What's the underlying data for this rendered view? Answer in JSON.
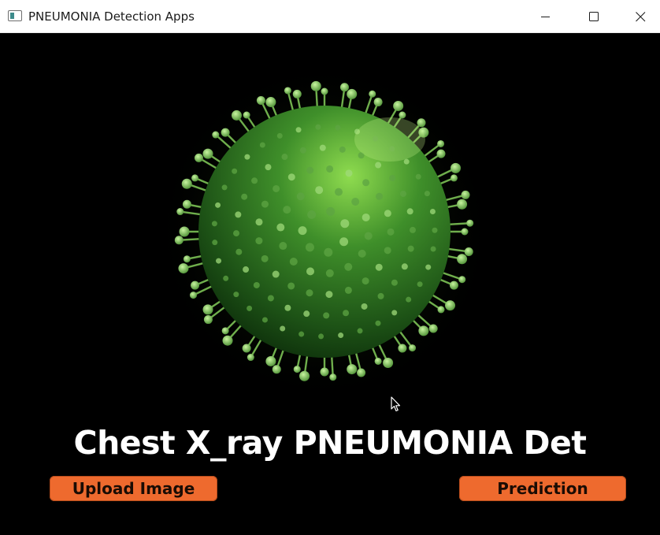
{
  "window": {
    "title": "PNEUMONIA Detection Apps",
    "icons": {
      "app": "app-window-icon",
      "minimize": "minimize-icon",
      "maximize": "maximize-icon",
      "close": "close-icon"
    }
  },
  "main": {
    "heading": "Chest X_ray PNEUMONIA Det",
    "upload_label": "Upload Image",
    "predict_label": "Prediction"
  },
  "colors": {
    "background": "#000000",
    "button": "#ee6a2e",
    "heading": "#ffffff",
    "virus": "#3f8f2a"
  }
}
